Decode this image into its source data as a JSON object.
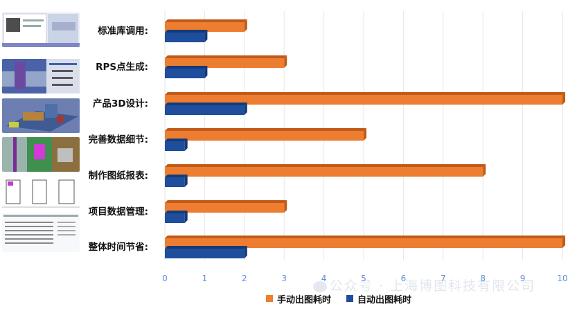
{
  "chart_data": {
    "type": "bar",
    "orientation": "horizontal",
    "categories": [
      "标准库调用:",
      "RPS点生成:",
      "产品3D设计:",
      "完善数据细节:",
      "制作图纸报表:",
      "项目数据管理:",
      "整体时间节省:"
    ],
    "series": [
      {
        "name": "手动出图耗时",
        "color": "#ed7d31",
        "values": [
          2,
          3,
          10,
          5,
          8,
          3,
          10
        ]
      },
      {
        "name": "自动出图耗时",
        "color": "#1f4e9c",
        "values": [
          1,
          1,
          2,
          0.5,
          0.5,
          0.5,
          2
        ]
      }
    ],
    "xlim": [
      0,
      10
    ],
    "xticks": [
      "0",
      "1",
      "2",
      "3",
      "4",
      "5",
      "6",
      "7",
      "8",
      "9",
      "10"
    ],
    "grid": true,
    "legend_position": "bottom"
  },
  "watermark": "公众号 · 上海博图科技有限公司",
  "colors": {
    "gridline": "#e6e6e6",
    "tick_text": "#5b8fd6",
    "bar_top_orange": "#c25a17",
    "bar_top_blue": "#143a78"
  }
}
